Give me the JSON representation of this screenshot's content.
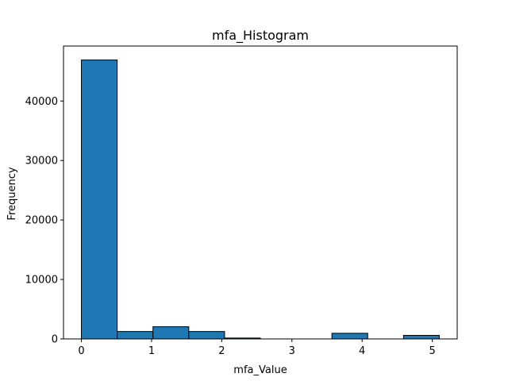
{
  "chart_data": {
    "type": "bar",
    "subtype": "histogram",
    "title": "mfa_Histogram",
    "xlabel": "mfa_Value",
    "ylabel": "Frequency",
    "bin_edges": [
      0,
      0.51,
      1.02,
      1.53,
      2.04,
      2.55,
      3.06,
      3.57,
      4.08,
      4.59,
      5.1
    ],
    "values": [
      46900,
      1250,
      2050,
      1250,
      150,
      0,
      0,
      950,
      0,
      600
    ],
    "xlim": [
      -0.255,
      5.355
    ],
    "ylim": [
      0,
      49245
    ],
    "xticks": [
      0,
      1,
      2,
      3,
      4,
      5
    ],
    "yticks": [
      0,
      10000,
      20000,
      30000,
      40000
    ],
    "bar_color": "#1f77b4",
    "edge_color": "#000000",
    "grid": false
  }
}
